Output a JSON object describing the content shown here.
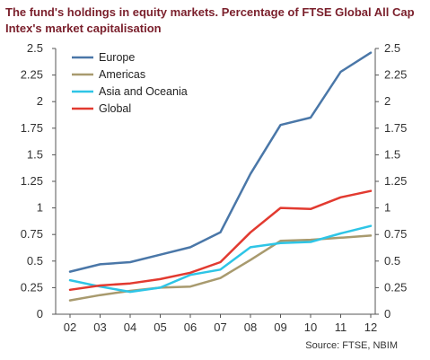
{
  "title_lines": [
    "The fund's holdings in equity markets. Percentage of FTSE Global All Cap",
    "Intex's market capitalisation"
  ],
  "source": "Source: FTSE, NBIM",
  "chart_data": {
    "type": "line",
    "categories": [
      "02",
      "03",
      "04",
      "05",
      "06",
      "07",
      "08",
      "09",
      "10",
      "11",
      "12"
    ],
    "ylim": [
      0,
      2.5
    ],
    "yticks": [
      "0",
      "0.25",
      "0.5",
      "0.75",
      "1",
      "1.25",
      "1.5",
      "1.75",
      "2",
      "2.25",
      "2.5"
    ],
    "grid": false,
    "legend_position": "top-left",
    "series": [
      {
        "name": "Europe",
        "color": "#4a77a8",
        "values": [
          0.4,
          0.47,
          0.49,
          0.56,
          0.63,
          0.77,
          1.32,
          1.78,
          1.85,
          2.28,
          2.46
        ]
      },
      {
        "name": "Americas",
        "color": "#a89a6e",
        "values": [
          0.13,
          0.18,
          0.22,
          0.25,
          0.26,
          0.34,
          0.51,
          0.69,
          0.7,
          0.72,
          0.74
        ]
      },
      {
        "name": "Asia and Oceania",
        "color": "#2ec5e6",
        "values": [
          0.32,
          0.26,
          0.21,
          0.25,
          0.37,
          0.42,
          0.63,
          0.67,
          0.68,
          0.76,
          0.83
        ]
      },
      {
        "name": "Global",
        "color": "#e23a30",
        "values": [
          0.23,
          0.27,
          0.29,
          0.33,
          0.39,
          0.49,
          0.77,
          1.0,
          0.99,
          1.1,
          1.16
        ]
      }
    ]
  }
}
